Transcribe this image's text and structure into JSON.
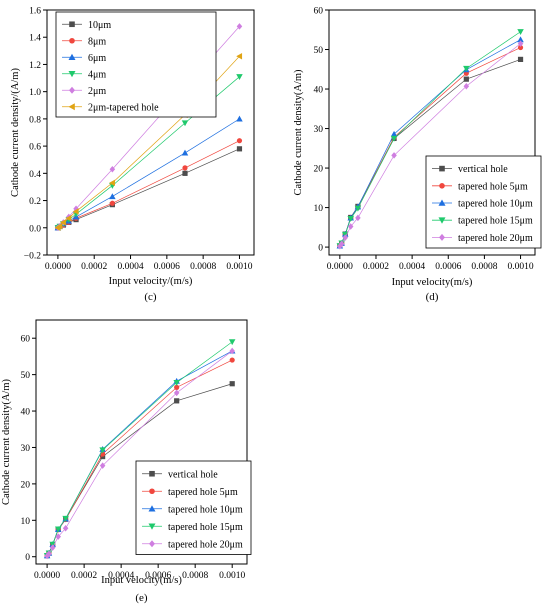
{
  "colors": {
    "square": "#4d4d4d",
    "circle": "#f0473e",
    "triangle_up": "#1e6fe0",
    "triangle_down": "#1fc96c",
    "diamond": "#cf7ee0",
    "triangle_left": "#e0a415"
  },
  "chart_data": [
    {
      "panel": "(c)",
      "type": "line",
      "xlabel": "Input velocity/(m/s)",
      "ylabel": "Cathode current density/(A/m)",
      "xlim": [
        -6e-05,
        0.00108
      ],
      "ylim": [
        -0.2,
        1.6
      ],
      "xticks": [
        "0.0000",
        "0.0002",
        "0.0004",
        "0.0006",
        "0.0008",
        "0.0010"
      ],
      "xtick_values": [
        0,
        0.0002,
        0.0004,
        0.0006,
        0.0008,
        0.001
      ],
      "yticks": [
        "−0.2",
        "0.0",
        "0.2",
        "0.4",
        "0.6",
        "0.8",
        "1.0",
        "1.2",
        "1.4",
        "1.6"
      ],
      "ytick_values": [
        -0.2,
        0,
        0.2,
        0.4,
        0.6,
        0.8,
        1.0,
        1.2,
        1.4,
        1.6
      ],
      "legend_position": "top-left",
      "x": [
        0,
        1e-05,
        3e-05,
        6e-05,
        0.0001,
        0.0003,
        0.0007,
        0.001
      ],
      "series": [
        {
          "name": "10μm",
          "marker": "square",
          "values": [
            0.0,
            0.01,
            0.02,
            0.04,
            0.06,
            0.17,
            0.4,
            0.58
          ]
        },
        {
          "name": "8μm",
          "marker": "circle",
          "values": [
            0.0,
            0.01,
            0.02,
            0.04,
            0.07,
            0.18,
            0.44,
            0.64
          ]
        },
        {
          "name": "6μm",
          "marker": "triangle_up",
          "values": [
            0.0,
            0.01,
            0.03,
            0.05,
            0.08,
            0.23,
            0.55,
            0.8
          ]
        },
        {
          "name": "4μm",
          "marker": "triangle_down",
          "values": [
            0.0,
            0.01,
            0.03,
            0.06,
            0.1,
            0.31,
            0.77,
            1.11
          ]
        },
        {
          "name": "2μm",
          "marker": "diamond",
          "values": [
            0.0,
            0.01,
            0.04,
            0.08,
            0.14,
            0.43,
            1.03,
            1.48
          ]
        },
        {
          "name": "2μm-tapered hole",
          "marker": "triangle_left",
          "values": [
            0.0,
            0.01,
            0.04,
            0.07,
            0.12,
            0.33,
            0.83,
            1.26
          ]
        }
      ]
    },
    {
      "panel": "(d)",
      "type": "line",
      "xlabel": "Input velocity(m/s)",
      "ylabel": "Cathode current density(A/m)",
      "xlim": [
        -6e-05,
        0.00108
      ],
      "ylim": [
        -2,
        60
      ],
      "xticks": [
        "0.0000",
        "0.0002",
        "0.0004",
        "0.0006",
        "0.0008",
        "0.0010"
      ],
      "xtick_values": [
        0,
        0.0002,
        0.0004,
        0.0006,
        0.0008,
        0.001
      ],
      "yticks": [
        "0",
        "10",
        "20",
        "30",
        "40",
        "50",
        "60"
      ],
      "ytick_values": [
        0,
        10,
        20,
        30,
        40,
        50,
        60
      ],
      "legend_position": "bottom-right",
      "x": [
        0,
        1e-05,
        3e-05,
        6e-05,
        0.0001,
        0.0003,
        0.0007,
        0.001
      ],
      "series": [
        {
          "name": "vertical hole",
          "marker": "square",
          "values": [
            0.3,
            1.0,
            3.3,
            7.5,
            10.3,
            27.5,
            42.5,
            47.5
          ]
        },
        {
          "name": "tapered hole 5μm",
          "marker": "circle",
          "values": [
            0.3,
            1.0,
            3.2,
            7.3,
            10.0,
            27.8,
            44.0,
            50.5
          ]
        },
        {
          "name": "tapered hole 10μm",
          "marker": "triangle_up",
          "values": [
            0.3,
            1.0,
            3.3,
            7.4,
            10.2,
            28.6,
            44.9,
            52.5
          ]
        },
        {
          "name": "tapered hole 15μm",
          "marker": "triangle_down",
          "values": [
            0.3,
            1.0,
            3.2,
            7.2,
            9.8,
            27.5,
            45.2,
            54.5
          ]
        },
        {
          "name": "tapered hole 20μm",
          "marker": "diamond",
          "values": [
            0.2,
            0.8,
            2.4,
            5.2,
            7.4,
            23.2,
            40.7,
            51.5
          ]
        }
      ]
    },
    {
      "panel": "(e)",
      "type": "line",
      "xlabel": "Input velocity(m/s)",
      "ylabel": "Cathode current density(A/m)",
      "xlim": [
        -6e-05,
        0.00108
      ],
      "ylim": [
        -2,
        65
      ],
      "xticks": [
        "0.0000",
        "0.0002",
        "0.0004",
        "0.0006",
        "0.0008",
        "0.0010"
      ],
      "xtick_values": [
        0,
        0.0002,
        0.0004,
        0.0006,
        0.0008,
        0.001
      ],
      "yticks": [
        "0",
        "10",
        "20",
        "30",
        "40",
        "50",
        "60"
      ],
      "ytick_values": [
        0,
        10,
        20,
        30,
        40,
        50,
        60
      ],
      "legend_position": "bottom-right",
      "x": [
        0,
        1e-05,
        3e-05,
        6e-05,
        0.0001,
        0.0003,
        0.0007,
        0.001
      ],
      "series": [
        {
          "name": "vertical hole",
          "marker": "square",
          "values": [
            0.3,
            1.0,
            3.3,
            7.5,
            10.3,
            27.5,
            42.8,
            47.5
          ]
        },
        {
          "name": "tapered hole 5μm",
          "marker": "circle",
          "values": [
            0.3,
            1.0,
            3.3,
            7.4,
            10.2,
            28.2,
            46.5,
            54.0
          ]
        },
        {
          "name": "tapered hole 10μm",
          "marker": "triangle_up",
          "values": [
            0.3,
            1.0,
            3.4,
            7.5,
            10.4,
            29.5,
            48.2,
            56.5
          ]
        },
        {
          "name": "tapered hole 15μm",
          "marker": "triangle_down",
          "values": [
            0.3,
            1.0,
            3.4,
            7.6,
            10.5,
            29.3,
            47.8,
            59.0
          ]
        },
        {
          "name": "tapered hole 20μm",
          "marker": "diamond",
          "values": [
            0.2,
            0.8,
            2.5,
            5.5,
            7.8,
            25.0,
            45.0,
            56.5
          ]
        }
      ]
    }
  ]
}
